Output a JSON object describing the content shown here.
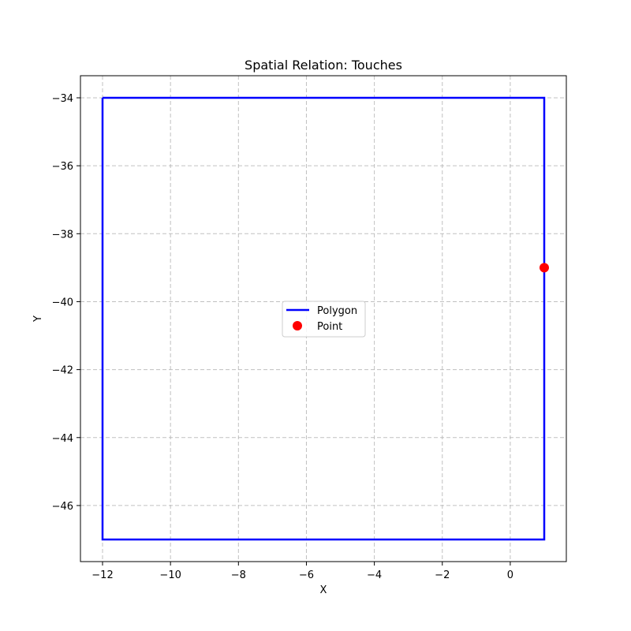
{
  "chart_data": {
    "type": "scatter",
    "title": "Spatial Relation: Touches",
    "xlabel": "X",
    "ylabel": "Y",
    "xlim": [
      -12.65,
      1.65
    ],
    "ylim": [
      -47.65,
      -33.35
    ],
    "x_ticks": [
      -12,
      -10,
      -8,
      -6,
      -4,
      -2,
      0
    ],
    "y_ticks": [
      -34,
      -36,
      -38,
      -40,
      -42,
      -44,
      -46
    ],
    "grid": true,
    "legend_position": "center",
    "series": [
      {
        "name": "Polygon",
        "kind": "line",
        "color": "#0000ff",
        "points": [
          [
            -12,
            -34
          ],
          [
            1,
            -34
          ],
          [
            1,
            -47
          ],
          [
            -12,
            -47
          ],
          [
            -12,
            -34
          ]
        ]
      },
      {
        "name": "Point",
        "kind": "marker",
        "color": "#ff0000",
        "points": [
          [
            1,
            -39
          ]
        ]
      }
    ]
  }
}
